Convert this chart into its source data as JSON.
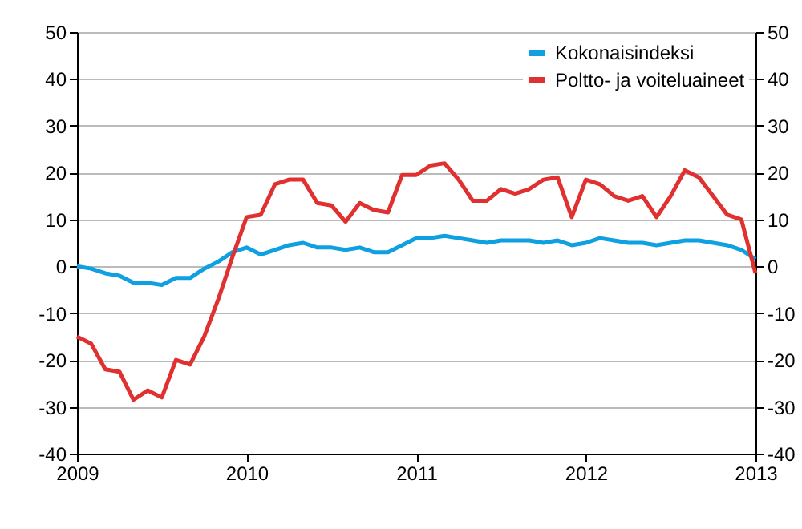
{
  "chart_data": {
    "type": "line",
    "x": [
      2009,
      2009.0833,
      2009.1667,
      2009.25,
      2009.3333,
      2009.4167,
      2009.5,
      2009.5833,
      2009.6667,
      2009.75,
      2009.8333,
      2009.9167,
      2010,
      2010.0833,
      2010.1667,
      2010.25,
      2010.3333,
      2010.4167,
      2010.5,
      2010.5833,
      2010.6667,
      2010.75,
      2010.8333,
      2010.9167,
      2011,
      2011.0833,
      2011.1667,
      2011.25,
      2011.3333,
      2011.4167,
      2011.5,
      2011.5833,
      2011.6667,
      2011.75,
      2011.8333,
      2011.9167,
      2012,
      2012.0833,
      2012.1667,
      2012.25,
      2012.3333,
      2012.4167,
      2012.5,
      2012.5833,
      2012.6667,
      2012.75,
      2012.8333,
      2012.9167,
      2013
    ],
    "series": [
      {
        "name": "Kokonaisindeksi",
        "color": "#0ea0e0",
        "values": [
          0,
          -0.5,
          -1.5,
          -2,
          -3.5,
          -3.5,
          -4,
          -2.5,
          -2.5,
          -0.5,
          1,
          3,
          4,
          2.5,
          3.5,
          4.5,
          5,
          4,
          4,
          3.5,
          4,
          3,
          3,
          4.5,
          6,
          6,
          6.5,
          6,
          5.5,
          5,
          5.5,
          5.5,
          5.5,
          5,
          5.5,
          4.5,
          5,
          6,
          5.5,
          5,
          5,
          4.5,
          5,
          5.5,
          5.5,
          5,
          4.5,
          3.5,
          1.5
        ]
      },
      {
        "name": "Poltto- ja voiteluaineet",
        "color": "#e03030",
        "values": [
          -15,
          -16.5,
          -22,
          -22.5,
          -28.5,
          -26.5,
          -28,
          -20,
          -21,
          -15,
          -7,
          2,
          10.5,
          11,
          17.5,
          18.5,
          18.5,
          13.5,
          13,
          9.5,
          13.5,
          12,
          11.5,
          19.5,
          19.5,
          21.5,
          22,
          18.5,
          14,
          14,
          16.5,
          15.5,
          16.5,
          18.5,
          19,
          10.5,
          18.5,
          17.5,
          15,
          14,
          15,
          10.5,
          15,
          20.5,
          19,
          15,
          11,
          10,
          -1.5
        ]
      }
    ],
    "xlim": [
      2009,
      2013
    ],
    "xticks": [
      2009,
      2010,
      2011,
      2012,
      2013
    ],
    "ylim": [
      -40,
      50
    ],
    "yticks": [
      -40,
      -30,
      -20,
      -10,
      0,
      10,
      20,
      30,
      40,
      50
    ],
    "y2lim": [
      -40,
      50
    ],
    "y2ticks": [
      -40,
      -30,
      -20,
      -10,
      0,
      10,
      20,
      30,
      40,
      50
    ],
    "grid": "y",
    "legend": "top right",
    "line_style": "solid",
    "marker": "none"
  }
}
